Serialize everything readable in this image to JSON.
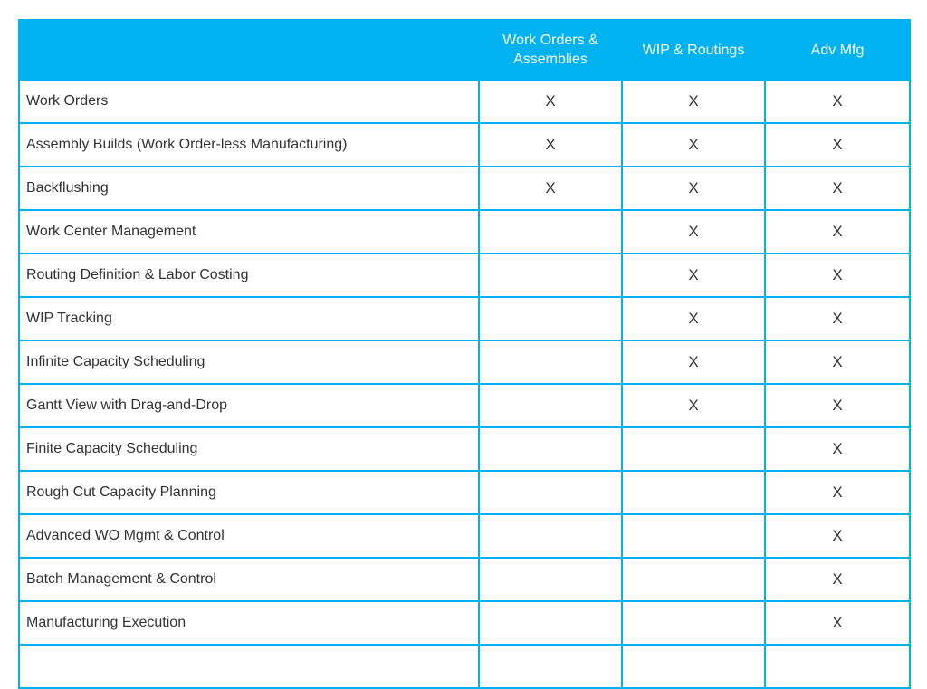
{
  "header": {
    "corner": "",
    "columns": [
      "Work  Orders &\nAssemblies",
      "WIP & Routings",
      "Adv Mfg"
    ]
  },
  "rows": [
    {
      "feature": "Work Orders",
      "marks": [
        "X",
        "X",
        "X"
      ]
    },
    {
      "feature": "Assembly Builds (Work Order-less Manufacturing)",
      "marks": [
        "X",
        "X",
        "X"
      ]
    },
    {
      "feature": "Backflushing",
      "marks": [
        "X",
        "X",
        "X"
      ]
    },
    {
      "feature": "Work Center Management",
      "marks": [
        "",
        "X",
        "X"
      ]
    },
    {
      "feature": "Routing Definition & Labor Costing",
      "marks": [
        "",
        "X",
        "X"
      ]
    },
    {
      "feature": "WIP Tracking",
      "marks": [
        "",
        "X",
        "X"
      ]
    },
    {
      "feature": "Infinite Capacity Scheduling",
      "marks": [
        "",
        "X",
        "X"
      ]
    },
    {
      "feature": "Gantt View with Drag-and-Drop",
      "marks": [
        "",
        "X",
        "X"
      ]
    },
    {
      "feature": "Finite Capacity Scheduling",
      "marks": [
        "",
        "",
        "X"
      ]
    },
    {
      "feature": "Rough Cut Capacity Planning",
      "marks": [
        "",
        "",
        "X"
      ]
    },
    {
      "feature": "Advanced WO Mgmt & Control",
      "marks": [
        "",
        "",
        "X"
      ]
    },
    {
      "feature": "Batch Management & Control",
      "marks": [
        "",
        "",
        "X"
      ]
    },
    {
      "feature": "Manufacturing Execution",
      "marks": [
        "",
        "",
        "X"
      ]
    },
    {
      "feature": "",
      "marks": [
        "",
        "",
        ""
      ]
    }
  ],
  "colors": {
    "accent": "#00b3f0",
    "text": "#333333",
    "header_text": "#ffffff"
  }
}
